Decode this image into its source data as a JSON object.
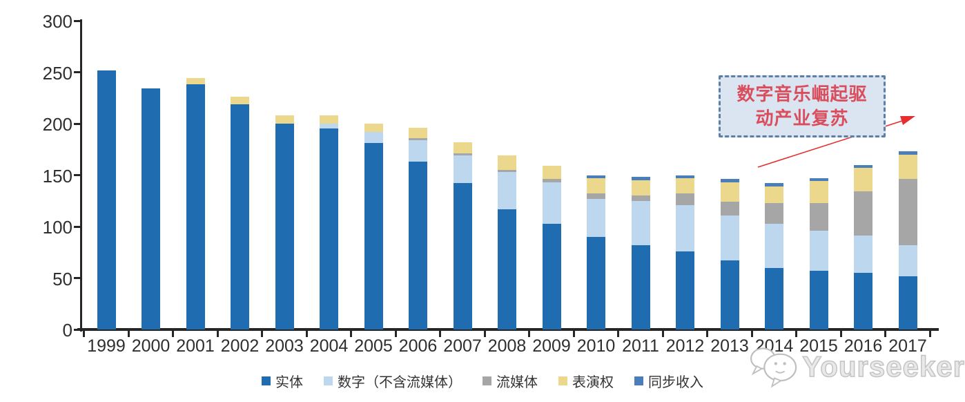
{
  "chart_data": {
    "type": "bar",
    "stacked": true,
    "categories": [
      "1999",
      "2000",
      "2001",
      "2002",
      "2003",
      "2004",
      "2005",
      "2006",
      "2007",
      "2008",
      "2009",
      "2010",
      "2011",
      "2012",
      "2013",
      "2014",
      "2015",
      "2016",
      "2017"
    ],
    "series": [
      {
        "name": "实体",
        "color": "#1F6CB0",
        "values": [
          252,
          234,
          238,
          219,
          200,
          195,
          181,
          163,
          142,
          117,
          103,
          90,
          82,
          76,
          67,
          60,
          57,
          55,
          52
        ]
      },
      {
        "name": "数字（不含流媒体）",
        "color": "#BDD7EE",
        "values": [
          0,
          0,
          0,
          0,
          0,
          5,
          11,
          21,
          27,
          36,
          40,
          37,
          43,
          45,
          44,
          43,
          39,
          36,
          30
        ]
      },
      {
        "name": "流媒体",
        "color": "#A6A6A6",
        "values": [
          0,
          0,
          0,
          0,
          0,
          0,
          0,
          2,
          2,
          2,
          3,
          5,
          5,
          11,
          13,
          20,
          27,
          43,
          64
        ]
      },
      {
        "name": "表演权",
        "color": "#ECD88C",
        "values": [
          0,
          0,
          6,
          7,
          8,
          8,
          8,
          10,
          11,
          14,
          13,
          15,
          15,
          15,
          19,
          16,
          21,
          23,
          24
        ]
      },
      {
        "name": "同步收入",
        "color": "#4A7EBB",
        "values": [
          0,
          0,
          0,
          0,
          0,
          0,
          0,
          0,
          0,
          0,
          0,
          3,
          3,
          3,
          3,
          3,
          3,
          3,
          3
        ]
      }
    ],
    "ylim": [
      0,
      300
    ],
    "yticks": [
      0,
      50,
      100,
      150,
      200,
      250,
      300
    ],
    "grid": false,
    "legend_position": "bottom",
    "title": "",
    "xlabel": "",
    "ylabel": ""
  },
  "annotation": {
    "line1": "数字音乐崛起驱",
    "line2": "动产业复苏",
    "box_fill": "#DBE5F2",
    "border_color": "#5B7FA8",
    "text_color": "#D94D5C",
    "arrow_color": "#E62E2E"
  },
  "watermark": {
    "text": "Yourseeker"
  },
  "colors": {
    "axis": "#262626",
    "tick_label": "#2F2F2F"
  }
}
